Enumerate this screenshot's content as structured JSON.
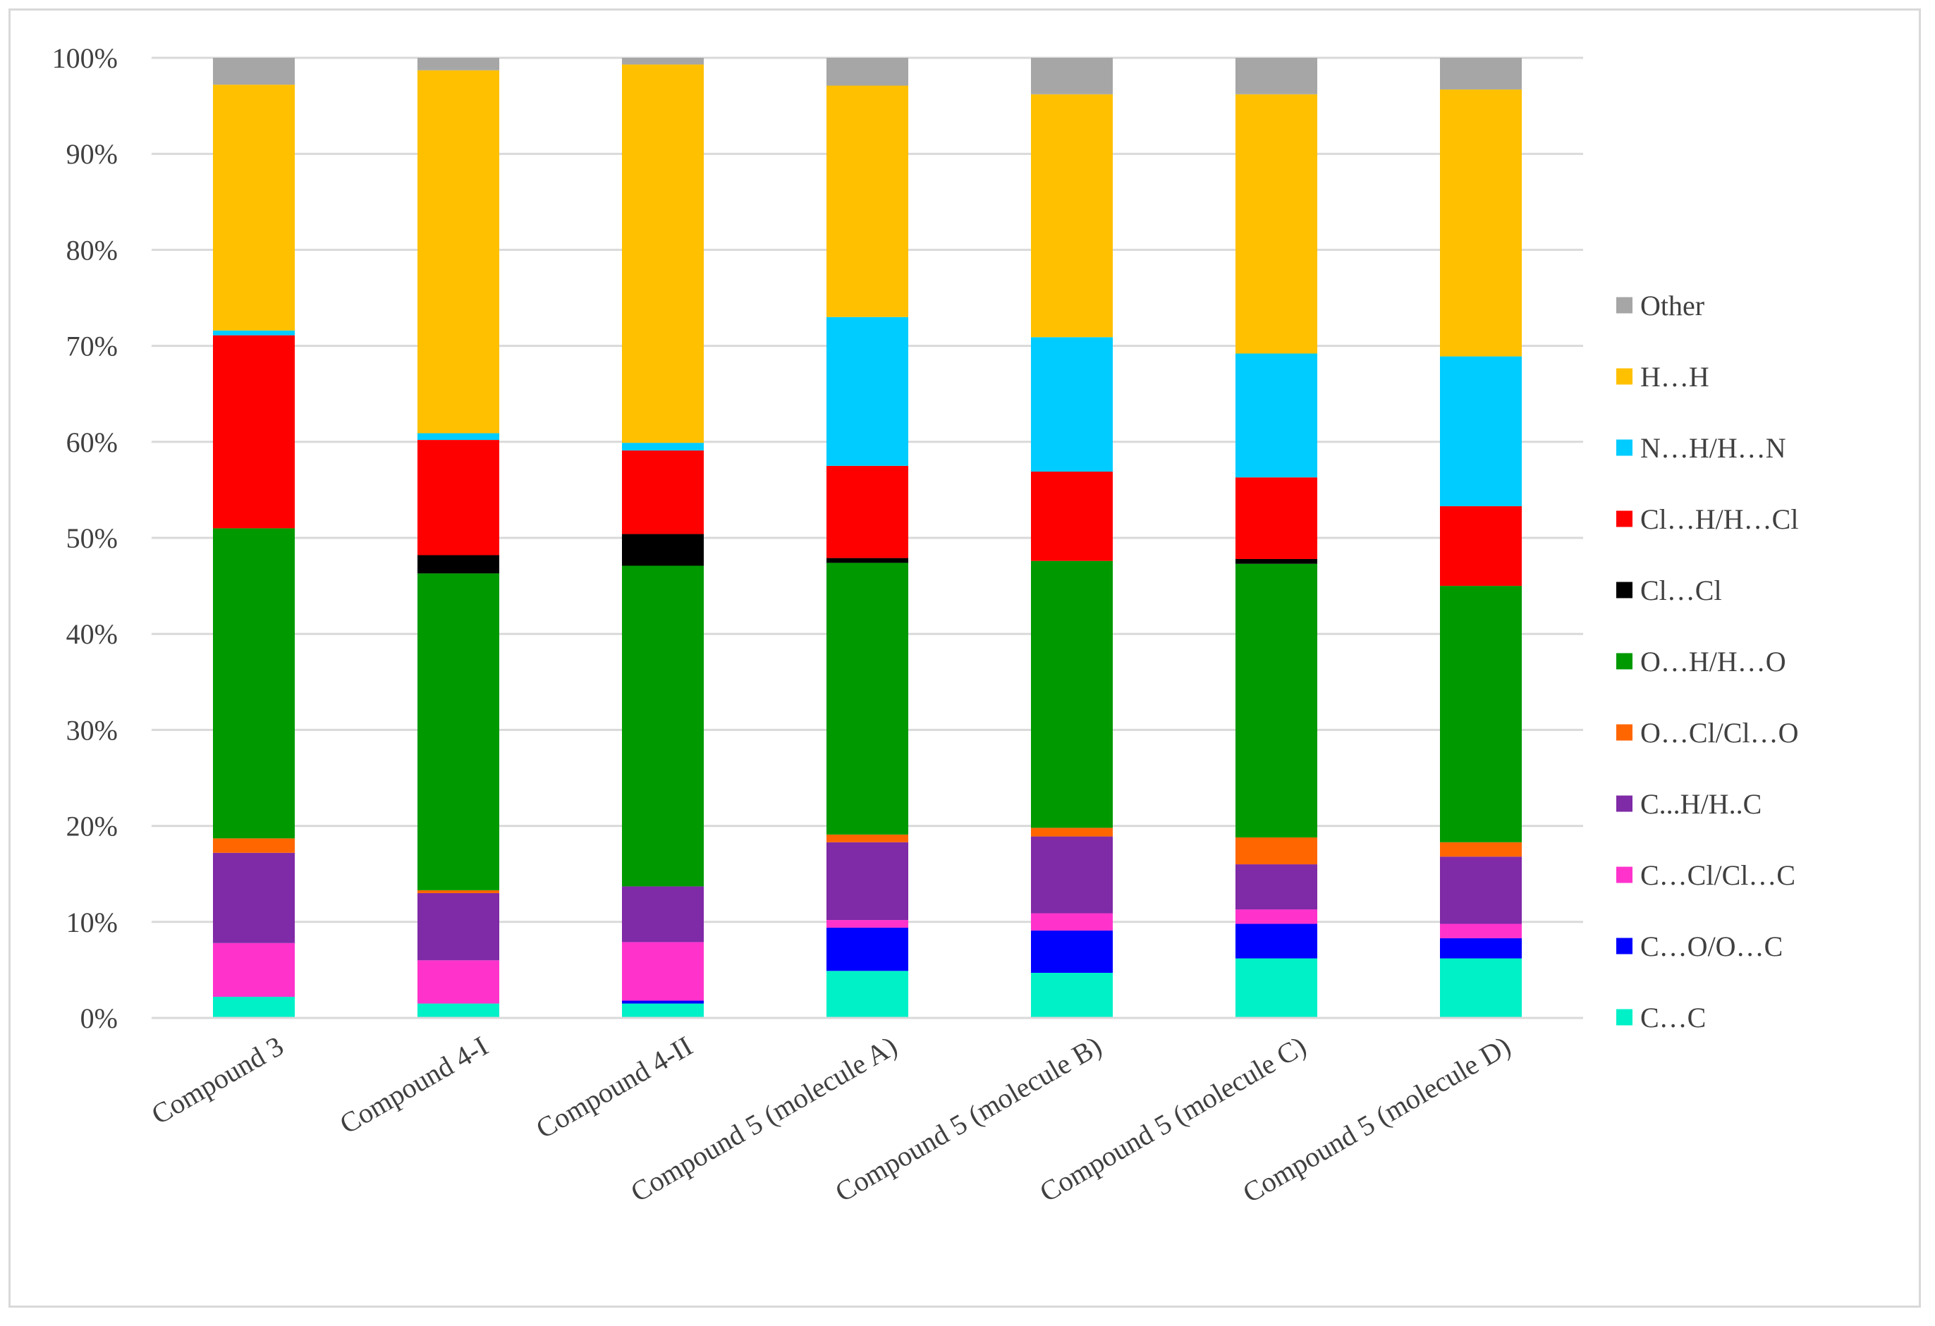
{
  "chart_data": {
    "type": "bar",
    "stacked": true,
    "percent": true,
    "title": "",
    "xlabel": "",
    "ylabel": "",
    "ylim": [
      0,
      100
    ],
    "y_ticks": [
      "0%",
      "10%",
      "20%",
      "30%",
      "40%",
      "50%",
      "60%",
      "70%",
      "80%",
      "90%",
      "100%"
    ],
    "grid": true,
    "legend_position": "right",
    "categories": [
      "Compound 3",
      "Compound 4-I",
      "Compound 4-II",
      "Compound 5 (molecule A)",
      "Compound 5 (molecule B)",
      "Compound 5 (molecule C)",
      "Compound 5 (molecule D)"
    ],
    "series": [
      {
        "name": "C…C",
        "color": "#00f0c8",
        "values": [
          2.2,
          1.5,
          1.5,
          4.9,
          4.7,
          6.2,
          6.2
        ]
      },
      {
        "name": "C…O/O…C",
        "color": "#0000ff",
        "values": [
          0.0,
          0.0,
          0.3,
          4.5,
          4.4,
          3.6,
          2.1
        ]
      },
      {
        "name": "C…Cl/Cl…C",
        "color": "#ff33cc",
        "values": [
          5.6,
          4.5,
          6.1,
          0.8,
          1.8,
          1.5,
          1.5
        ]
      },
      {
        "name": "C...H/H..C",
        "color": "#7f2aa6",
        "values": [
          9.4,
          7.0,
          5.8,
          8.1,
          8.0,
          4.7,
          7.0
        ]
      },
      {
        "name": "O…Cl/Cl…O",
        "color": "#ff6600",
        "values": [
          1.5,
          0.3,
          0.0,
          0.8,
          0.9,
          2.8,
          1.5
        ]
      },
      {
        "name": "O…H/H…O",
        "color": "#009900",
        "values": [
          32.3,
          33.0,
          33.4,
          28.3,
          27.8,
          28.5,
          26.7
        ]
      },
      {
        "name": "Cl…Cl",
        "color": "#000000",
        "values": [
          0.0,
          1.9,
          3.3,
          0.5,
          0.0,
          0.5,
          0.0
        ]
      },
      {
        "name": "Cl…H/H…Cl",
        "color": "#ff0000",
        "values": [
          20.1,
          12.0,
          8.7,
          9.6,
          9.3,
          8.5,
          8.3
        ]
      },
      {
        "name": "N…H/H…N",
        "color": "#00ccff",
        "values": [
          0.5,
          0.7,
          0.8,
          15.5,
          14.0,
          12.9,
          15.6
        ]
      },
      {
        "name": "H…H",
        "color": "#ffc000",
        "values": [
          25.6,
          37.8,
          39.4,
          24.1,
          25.3,
          27.0,
          27.8
        ]
      },
      {
        "name": "Other",
        "color": "#a6a6a6",
        "values": [
          2.8,
          1.3,
          0.7,
          2.9,
          3.8,
          3.8,
          3.3
        ]
      }
    ],
    "legend_order": [
      "Other",
      "H…H",
      "N…H/H…N",
      "Cl…H/H…Cl",
      "Cl…Cl",
      "O…H/H…O",
      "O…Cl/Cl…O",
      "C...H/H..C",
      "C…Cl/Cl…C",
      "C…O/O…C",
      "C…C"
    ]
  }
}
